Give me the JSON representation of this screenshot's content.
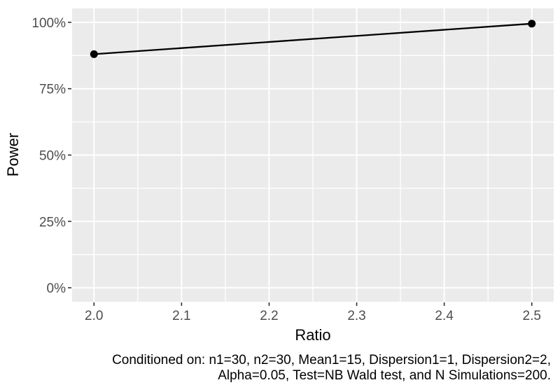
{
  "chart_data": {
    "type": "line",
    "title": "",
    "xlabel": "Ratio",
    "ylabel": "Power",
    "x": [
      2.0,
      2.5
    ],
    "series": [
      {
        "name": "Power",
        "values": [
          0.88,
          0.995
        ]
      }
    ],
    "x_ticks": [
      2.0,
      2.1,
      2.2,
      2.3,
      2.4,
      2.5
    ],
    "x_tick_labels": [
      "2.0",
      "2.1",
      "2.2",
      "2.3",
      "2.4",
      "2.5"
    ],
    "x_minor_ticks": [
      2.05,
      2.15,
      2.25,
      2.35,
      2.45
    ],
    "y_ticks": [
      0.0,
      0.25,
      0.5,
      0.75,
      1.0
    ],
    "y_tick_labels": [
      "0%",
      "25%",
      "50%",
      "75%",
      "100%"
    ],
    "y_minor_ticks": [
      0.125,
      0.375,
      0.625,
      0.875
    ],
    "xlim": [
      1.975,
      2.525
    ],
    "ylim": [
      -0.0525,
      1.0525
    ],
    "grid": "on",
    "legend": "none",
    "caption_lines": [
      "Conditioned on: n1=30, n2=30, Mean1=15, Dispersion1=1, Dispersion2=2,",
      "Alpha=0.05, Test=NB Wald test, and N Simulations=200."
    ],
    "colors": {
      "background": "#FFFFFF",
      "panel_bg": "#EBEBEB",
      "grid": "#FFFFFF",
      "line": "#000000",
      "point": "#000000",
      "tick_label": "#4D4D4D",
      "tick_mark": "#333333",
      "axis_title": "#000000",
      "caption": "#000000"
    }
  }
}
